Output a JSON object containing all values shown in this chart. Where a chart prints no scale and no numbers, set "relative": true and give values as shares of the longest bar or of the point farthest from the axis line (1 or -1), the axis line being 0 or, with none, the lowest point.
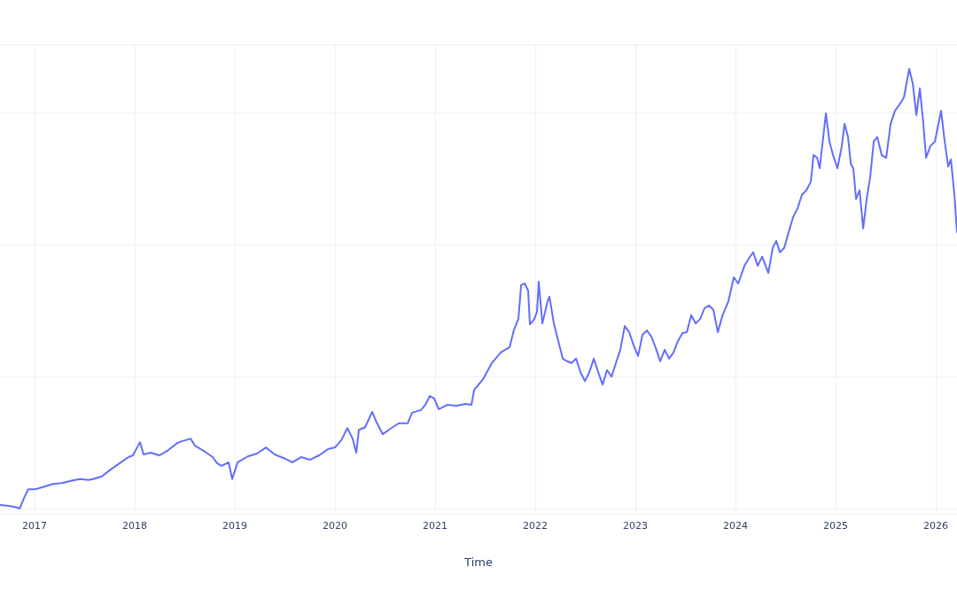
{
  "chart_data": {
    "type": "line",
    "xlabel": "Time",
    "relative": true,
    "grid": true,
    "marker": "none",
    "xlim": [
      2016.655,
      2026.212
    ],
    "xticks": [
      2017,
      2018,
      2019,
      2020,
      2021,
      2022,
      2023,
      2024,
      2025,
      2026
    ],
    "x": [
      2016.655,
      2016.744,
      2016.832,
      2016.85,
      2016.903,
      2016.938,
      2017.009,
      2017.098,
      2017.186,
      2017.275,
      2017.363,
      2017.452,
      2017.54,
      2017.584,
      2017.673,
      2017.761,
      2017.85,
      2017.938,
      2017.983,
      2018.053,
      2018.089,
      2018.159,
      2018.248,
      2018.336,
      2018.425,
      2018.469,
      2018.558,
      2018.602,
      2018.691,
      2018.779,
      2018.823,
      2018.868,
      2018.938,
      2018.974,
      2019.027,
      2019.133,
      2019.221,
      2019.31,
      2019.398,
      2019.487,
      2019.575,
      2019.664,
      2019.752,
      2019.841,
      2019.93,
      2020.0,
      2020.062,
      2020.124,
      2020.177,
      2020.213,
      2020.239,
      2020.301,
      2020.372,
      2020.416,
      2020.478,
      2020.549,
      2020.637,
      2020.726,
      2020.77,
      2020.859,
      2020.903,
      2020.947,
      2020.992,
      2021.036,
      2021.124,
      2021.213,
      2021.301,
      2021.363,
      2021.39,
      2021.478,
      2021.567,
      2021.655,
      2021.744,
      2021.788,
      2021.832,
      2021.859,
      2021.894,
      2021.929,
      2021.947,
      2021.991,
      2022.018,
      2022.035,
      2022.071,
      2022.124,
      2022.142,
      2022.186,
      2022.23,
      2022.275,
      2022.319,
      2022.363,
      2022.408,
      2022.452,
      2022.496,
      2022.54,
      2022.585,
      2022.629,
      2022.673,
      2022.717,
      2022.762,
      2022.806,
      2022.85,
      2022.894,
      2022.939,
      2022.983,
      2023.027,
      2023.071,
      2023.116,
      2023.16,
      2023.204,
      2023.248,
      2023.293,
      2023.337,
      2023.381,
      2023.425,
      2023.47,
      2023.514,
      2023.558,
      2023.602,
      2023.647,
      2023.691,
      2023.735,
      2023.779,
      2023.824,
      2023.868,
      2023.93,
      2023.983,
      2024.027,
      2024.089,
      2024.133,
      2024.177,
      2024.222,
      2024.266,
      2024.328,
      2024.372,
      2024.407,
      2024.443,
      2024.487,
      2024.531,
      2024.576,
      2024.62,
      2024.664,
      2024.708,
      2024.753,
      2024.779,
      2024.815,
      2024.841,
      2024.903,
      2024.938,
      2024.974,
      2025.018,
      2025.062,
      2025.089,
      2025.124,
      2025.151,
      2025.177,
      2025.204,
      2025.239,
      2025.275,
      2025.31,
      2025.345,
      2025.381,
      2025.416,
      2025.46,
      2025.505,
      2025.549,
      2025.593,
      2025.638,
      2025.682,
      2025.735,
      2025.771,
      2025.806,
      2025.841,
      2025.876,
      2025.903,
      2025.947,
      2025.992,
      2026.018,
      2026.053,
      2026.089,
      2026.124,
      2026.151,
      2026.186,
      2026.212
    ],
    "series": [
      {
        "color": "#636efa",
        "values": [
          0.008,
          0.006,
          0.002,
          0,
          0.028,
          0.044,
          0.044,
          0.05,
          0.056,
          0.058,
          0.063,
          0.067,
          0.065,
          0.067,
          0.073,
          0.089,
          0.103,
          0.117,
          0.121,
          0.151,
          0.123,
          0.127,
          0.121,
          0.133,
          0.149,
          0.153,
          0.159,
          0.143,
          0.131,
          0.117,
          0.103,
          0.097,
          0.105,
          0.067,
          0.105,
          0.119,
          0.125,
          0.139,
          0.123,
          0.115,
          0.105,
          0.117,
          0.111,
          0.121,
          0.135,
          0.139,
          0.155,
          0.183,
          0.159,
          0.127,
          0.179,
          0.185,
          0.22,
          0.196,
          0.169,
          0.181,
          0.194,
          0.194,
          0.218,
          0.224,
          0.236,
          0.256,
          0.25,
          0.226,
          0.236,
          0.234,
          0.238,
          0.236,
          0.27,
          0.294,
          0.331,
          0.355,
          0.367,
          0.407,
          0.431,
          0.508,
          0.512,
          0.496,
          0.419,
          0.431,
          0.448,
          0.516,
          0.421,
          0.472,
          0.482,
          0.421,
          0.381,
          0.341,
          0.335,
          0.331,
          0.341,
          0.31,
          0.29,
          0.31,
          0.341,
          0.31,
          0.282,
          0.315,
          0.3,
          0.331,
          0.361,
          0.415,
          0.401,
          0.371,
          0.347,
          0.395,
          0.405,
          0.391,
          0.365,
          0.335,
          0.361,
          0.341,
          0.355,
          0.381,
          0.399,
          0.401,
          0.44,
          0.421,
          0.431,
          0.456,
          0.462,
          0.452,
          0.401,
          0.438,
          0.472,
          0.526,
          0.512,
          0.552,
          0.569,
          0.583,
          0.552,
          0.573,
          0.536,
          0.593,
          0.609,
          0.583,
          0.593,
          0.629,
          0.663,
          0.683,
          0.714,
          0.724,
          0.744,
          0.804,
          0.798,
          0.774,
          0.899,
          0.835,
          0.804,
          0.774,
          0.825,
          0.875,
          0.845,
          0.784,
          0.774,
          0.704,
          0.724,
          0.637,
          0.704,
          0.754,
          0.835,
          0.845,
          0.804,
          0.798,
          0.875,
          0.905,
          0.919,
          0.935,
          1,
          0.966,
          0.895,
          0.956,
          0.875,
          0.798,
          0.825,
          0.835,
          0.865,
          0.905,
          0.835,
          0.778,
          0.794,
          0.714,
          0.629
        ]
      }
    ]
  }
}
